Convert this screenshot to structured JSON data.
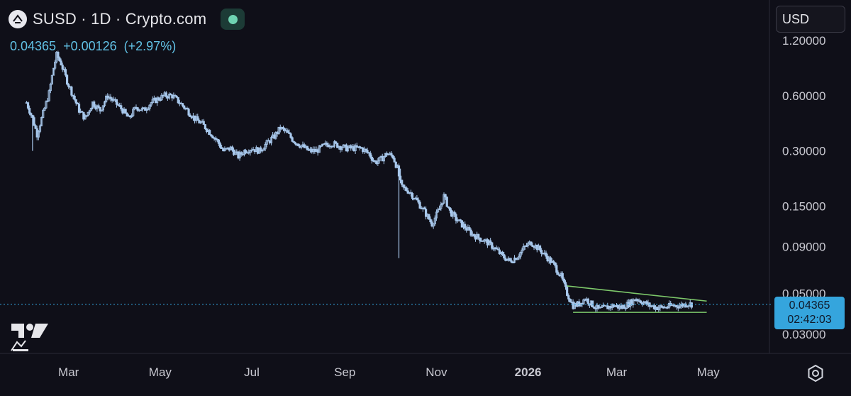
{
  "header": {
    "symbol": "SUSD · 1D · Crypto.com",
    "price": "0.04365",
    "change": "+0.00126",
    "change_pct": "(+2.97%)"
  },
  "currency_selector": {
    "value": "USD"
  },
  "last_price_badge": {
    "price": "0.04365",
    "countdown": "02:42:03"
  },
  "icons": {
    "exchange_logo": "exchange-logo-icon",
    "status": "market-status-icon",
    "tradingview": "tradingview-logo-icon",
    "settings": "gear-icon"
  },
  "colors": {
    "background": "#0f0f18",
    "candle": "#a8c8ec",
    "trendline": "#7dc86a",
    "price_line": "#35a5dd",
    "axis_text": "#c8c8d0"
  },
  "chart_data": {
    "type": "candlestick",
    "y_scale": "log",
    "ylim": [
      0.025,
      1.25
    ],
    "y_ticks": [
      "1.20000",
      "0.60000",
      "0.30000",
      "0.15000",
      "0.09000",
      "0.05000",
      "0.03000"
    ],
    "x_ticks": [
      "Mar",
      "May",
      "Jul",
      "Sep",
      "Nov",
      "2026",
      "Mar",
      "May"
    ],
    "x_range": [
      "2025-01-20",
      "2026-05-20"
    ],
    "last_price": 0.04365,
    "series": [
      {
        "name": "SUSD",
        "points": [
          [
            "2025-02-01",
            0.55
          ],
          [
            "2025-02-05",
            0.45
          ],
          [
            "2025-02-08",
            0.37
          ],
          [
            "2025-02-12",
            0.48
          ],
          [
            "2025-02-16",
            0.62
          ],
          [
            "2025-02-19",
            0.85
          ],
          [
            "2025-02-21",
            1.0
          ],
          [
            "2025-02-24",
            0.9
          ],
          [
            "2025-02-28",
            0.72
          ],
          [
            "2025-03-04",
            0.6
          ],
          [
            "2025-03-08",
            0.5
          ],
          [
            "2025-03-12",
            0.45
          ],
          [
            "2025-03-17",
            0.55
          ],
          [
            "2025-03-22",
            0.5
          ],
          [
            "2025-03-27",
            0.6
          ],
          [
            "2025-04-01",
            0.55
          ],
          [
            "2025-04-06",
            0.5
          ],
          [
            "2025-04-10",
            0.45
          ],
          [
            "2025-04-15",
            0.52
          ],
          [
            "2025-04-20",
            0.5
          ],
          [
            "2025-04-25",
            0.55
          ],
          [
            "2025-04-30",
            0.58
          ],
          [
            "2025-05-04",
            0.6
          ],
          [
            "2025-05-09",
            0.6
          ],
          [
            "2025-05-14",
            0.55
          ],
          [
            "2025-05-19",
            0.5
          ],
          [
            "2025-05-24",
            0.45
          ],
          [
            "2025-05-29",
            0.42
          ],
          [
            "2025-06-03",
            0.38
          ],
          [
            "2025-06-08",
            0.34
          ],
          [
            "2025-06-12",
            0.3
          ],
          [
            "2025-06-17",
            0.31
          ],
          [
            "2025-06-22",
            0.28
          ],
          [
            "2025-06-26",
            0.3
          ],
          [
            "2025-07-01",
            0.31
          ],
          [
            "2025-07-06",
            0.3
          ],
          [
            "2025-07-11",
            0.33
          ],
          [
            "2025-07-16",
            0.36
          ],
          [
            "2025-07-20",
            0.4
          ],
          [
            "2025-07-24",
            0.38
          ],
          [
            "2025-07-29",
            0.34
          ],
          [
            "2025-08-03",
            0.32
          ],
          [
            "2025-08-08",
            0.3
          ],
          [
            "2025-08-13",
            0.3
          ],
          [
            "2025-08-18",
            0.32
          ],
          [
            "2025-08-23",
            0.33
          ],
          [
            "2025-08-28",
            0.32
          ],
          [
            "2025-09-02",
            0.31
          ],
          [
            "2025-09-07",
            0.31
          ],
          [
            "2025-09-12",
            0.31
          ],
          [
            "2025-09-17",
            0.29
          ],
          [
            "2025-09-21",
            0.26
          ],
          [
            "2025-09-25",
            0.27
          ],
          [
            "2025-09-29",
            0.29
          ],
          [
            "2025-10-03",
            0.28
          ],
          [
            "2025-10-06",
            0.24
          ],
          [
            "2025-10-08",
            0.2
          ],
          [
            "2025-10-09",
            0.19
          ],
          [
            "2025-10-14",
            0.18
          ],
          [
            "2025-10-19",
            0.16
          ],
          [
            "2025-10-24",
            0.14
          ],
          [
            "2025-10-29",
            0.12
          ],
          [
            "2025-11-03",
            0.145
          ],
          [
            "2025-11-06",
            0.17
          ],
          [
            "2025-11-10",
            0.14
          ],
          [
            "2025-11-15",
            0.125
          ],
          [
            "2025-11-20",
            0.115
          ],
          [
            "2025-11-25",
            0.105
          ],
          [
            "2025-11-30",
            0.1
          ],
          [
            "2025-12-05",
            0.095
          ],
          [
            "2025-12-10",
            0.088
          ],
          [
            "2025-12-15",
            0.08
          ],
          [
            "2025-12-20",
            0.075
          ],
          [
            "2025-12-25",
            0.08
          ],
          [
            "2025-12-30",
            0.09
          ],
          [
            "2026-01-03",
            0.095
          ],
          [
            "2026-01-08",
            0.088
          ],
          [
            "2026-01-13",
            0.08
          ],
          [
            "2026-01-18",
            0.072
          ],
          [
            "2026-01-23",
            0.062
          ],
          [
            "2026-01-27",
            0.05
          ],
          [
            "2026-01-31",
            0.043
          ],
          [
            "2026-02-04",
            0.044
          ],
          [
            "2026-02-08",
            0.047
          ],
          [
            "2026-02-12",
            0.044
          ],
          [
            "2026-02-17",
            0.041
          ],
          [
            "2026-02-22",
            0.042
          ],
          [
            "2026-02-27",
            0.043
          ],
          [
            "2026-03-04",
            0.042
          ],
          [
            "2026-03-09",
            0.044
          ],
          [
            "2026-03-14",
            0.047
          ],
          [
            "2026-03-18",
            0.045
          ],
          [
            "2026-03-23",
            0.043
          ],
          [
            "2026-03-28",
            0.042
          ],
          [
            "2026-04-02",
            0.042
          ],
          [
            "2026-04-07",
            0.043
          ],
          [
            "2026-04-12",
            0.043
          ],
          [
            "2026-04-17",
            0.044
          ],
          [
            "2026-04-21",
            0.04365
          ]
        ],
        "wicks": [
          [
            "2025-02-05",
            0.3
          ],
          [
            "2025-10-07",
            0.078
          ],
          [
            "2025-10-08",
            0.24
          ]
        ]
      }
    ],
    "trendlines": [
      {
        "from": [
          "2026-01-27",
          0.055
        ],
        "to": [
          "2026-04-30",
          0.0455
        ]
      },
      {
        "from": [
          "2026-01-31",
          0.0395
        ],
        "to": [
          "2026-04-30",
          0.0395
        ]
      }
    ]
  }
}
